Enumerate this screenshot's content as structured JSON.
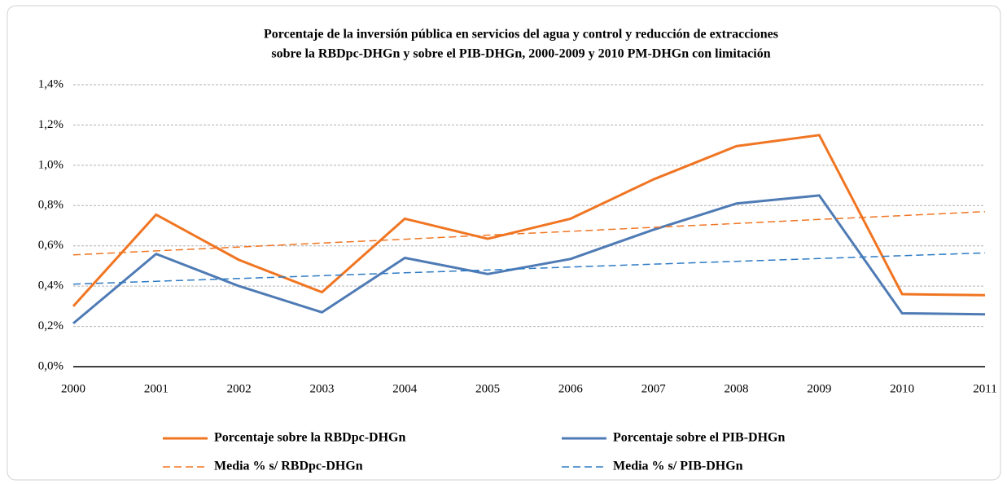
{
  "chart_data": {
    "type": "line",
    "title": [
      "Porcentaje de la inversión pública en servicios del agua y control y reducción de extracciones",
      "sobre la RBDpc-DHGn  y sobre el PIB-DHGn,  2000-2009 y 2010 PM-DHGn  con limitación"
    ],
    "categories": [
      "2000",
      "2001",
      "2002",
      "2003",
      "2004",
      "2005",
      "2006",
      "2007",
      "2008",
      "2009",
      "2010",
      "2011"
    ],
    "series": [
      {
        "name": "Porcentaje sobre la RBDpc-DHGn",
        "color": "#f07522",
        "dashed": false,
        "values": [
          0.3,
          0.755,
          0.53,
          0.37,
          0.735,
          0.635,
          0.735,
          0.93,
          1.095,
          1.15,
          0.36,
          0.355
        ]
      },
      {
        "name": "Porcentaje sobre el PIB-DHGn",
        "color": "#4f7bb5",
        "dashed": false,
        "values": [
          0.215,
          0.56,
          0.4,
          0.27,
          0.54,
          0.46,
          0.535,
          0.68,
          0.81,
          0.85,
          0.265,
          0.26
        ]
      },
      {
        "name": "Media % s/ RBDpc-DHGn",
        "color": "#f07522",
        "dashed": true,
        "values": [
          0.555,
          0.575,
          0.594,
          0.614,
          0.633,
          0.653,
          0.672,
          0.692,
          0.711,
          0.731,
          0.75,
          0.77
        ]
      },
      {
        "name": "Media % s/ PIB-DHGn",
        "color": "#2e7bc4",
        "dashed": true,
        "values": [
          0.41,
          0.424,
          0.438,
          0.452,
          0.466,
          0.48,
          0.495,
          0.509,
          0.523,
          0.537,
          0.551,
          0.565
        ]
      }
    ],
    "ylim": [
      0,
      1.4
    ],
    "yticks": [
      {
        "value": 0,
        "label": "0,0%"
      },
      {
        "value": 0.2,
        "label": "0,2%"
      },
      {
        "value": 0.4,
        "label": "0,4%"
      },
      {
        "value": 0.6,
        "label": "0,6%"
      },
      {
        "value": 0.8,
        "label": "0,8%"
      },
      {
        "value": 1.0,
        "label": "1,0%"
      },
      {
        "value": 1.2,
        "label": "1,2%"
      },
      {
        "value": 1.4,
        "label": "1,4%"
      }
    ],
    "grid": true,
    "legend": "bottom"
  }
}
